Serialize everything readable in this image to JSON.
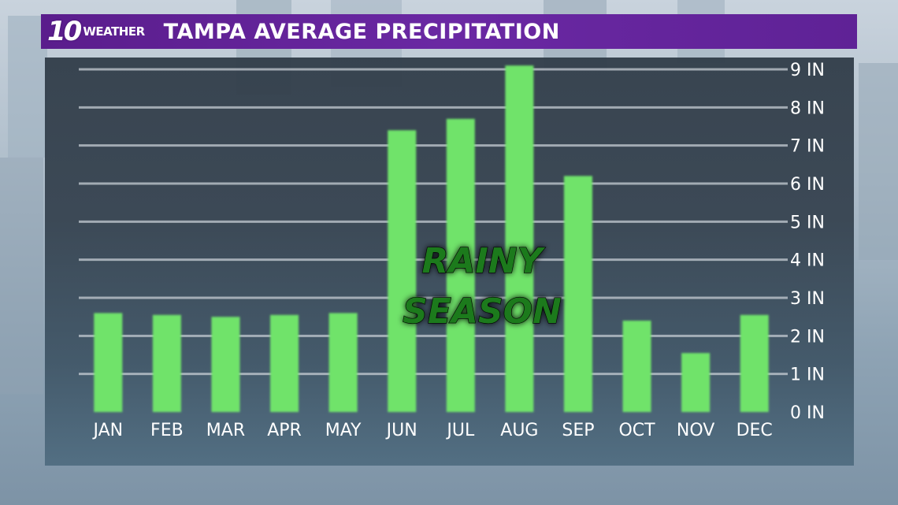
{
  "header": {
    "logo_number": "10",
    "logo_word": "WEATHER",
    "title": "TAMPA AVERAGE PRECIPITATION"
  },
  "colors": {
    "bar": "#6fe36a",
    "title_bar": "#5f2296",
    "annotation": "#1e7a1e",
    "gridline": "#c5ccd3"
  },
  "chart_data": {
    "type": "bar",
    "categories": [
      "JAN",
      "FEB",
      "MAR",
      "APR",
      "MAY",
      "JUN",
      "JUL",
      "AUG",
      "SEP",
      "OCT",
      "NOV",
      "DEC"
    ],
    "values": [
      2.6,
      2.55,
      2.5,
      2.55,
      2.6,
      7.4,
      7.7,
      9.1,
      6.2,
      2.4,
      1.55,
      2.55
    ],
    "ylim": [
      0,
      9
    ],
    "yticks": [
      0,
      1,
      2,
      3,
      4,
      5,
      6,
      7,
      8,
      9
    ],
    "ytick_labels": [
      "0 IN",
      "1 IN",
      "2 IN",
      "3 IN",
      "4 IN",
      "5 IN",
      "6 IN",
      "7 IN",
      "8 IN",
      "9 IN"
    ],
    "grid": true,
    "annotation": [
      "RAINY",
      "SEASON"
    ]
  }
}
